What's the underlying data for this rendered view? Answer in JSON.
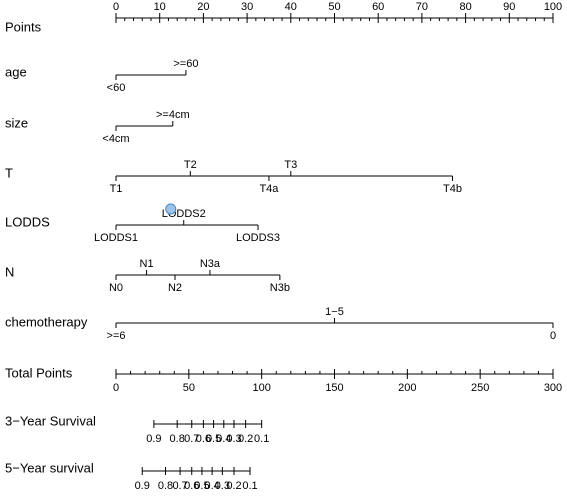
{
  "chart_data": {
    "type": "nomogram",
    "marked_point": {
      "row": "LODDS",
      "category": "LODDS2"
    },
    "rows": [
      {
        "key": "points",
        "label": "Points",
        "kind": "scale",
        "range": [
          0,
          100
        ],
        "major_ticks": [
          0,
          10,
          20,
          30,
          40,
          50,
          60,
          70,
          80,
          90,
          100
        ],
        "minor_step": 2,
        "labels_above": true
      },
      {
        "key": "age",
        "label": "age",
        "kind": "categorical",
        "categories": [
          {
            "label": "<60",
            "points": 0,
            "side": "below"
          },
          {
            "label": ">=60",
            "points": 16,
            "side": "above"
          }
        ]
      },
      {
        "key": "size",
        "label": "size",
        "kind": "categorical",
        "categories": [
          {
            "label": "<4cm",
            "points": 0,
            "side": "below"
          },
          {
            "label": ">=4cm",
            "points": 13,
            "side": "above"
          }
        ]
      },
      {
        "key": "t",
        "label": "T",
        "kind": "categorical",
        "categories": [
          {
            "label": "T1",
            "points": 0,
            "side": "below"
          },
          {
            "label": "T2",
            "points": 17,
            "side": "above"
          },
          {
            "label": "T4a",
            "points": 35,
            "side": "below"
          },
          {
            "label": "T3",
            "points": 40,
            "side": "above"
          },
          {
            "label": "T4b",
            "points": 77,
            "side": "below"
          }
        ]
      },
      {
        "key": "lodds",
        "label": "LODDS",
        "kind": "categorical",
        "categories": [
          {
            "label": "LODDS1",
            "points": 0,
            "side": "below"
          },
          {
            "label": "LODDS2",
            "points": 15.5,
            "side": "above"
          },
          {
            "label": "LODDS3",
            "points": 32.5,
            "side": "below"
          }
        ]
      },
      {
        "key": "n",
        "label": "N",
        "kind": "categorical",
        "categories": [
          {
            "label": "N0",
            "points": 0,
            "side": "below"
          },
          {
            "label": "N1",
            "points": 7,
            "side": "above"
          },
          {
            "label": "N2",
            "points": 13.5,
            "side": "below"
          },
          {
            "label": "N3a",
            "points": 21.5,
            "side": "above"
          },
          {
            "label": "N3b",
            "points": 37.5,
            "side": "below"
          }
        ]
      },
      {
        "key": "chemotherapy",
        "label": "chemotherapy",
        "kind": "categorical",
        "categories": [
          {
            "label": ">=6",
            "points": 0,
            "side": "below"
          },
          {
            "label": "1−5",
            "points": 50,
            "side": "above"
          },
          {
            "label": "0",
            "points": 100,
            "side": "below"
          }
        ]
      },
      {
        "key": "total_points",
        "label": "Total Points",
        "kind": "scale",
        "range": [
          0,
          300
        ],
        "major_ticks": [
          0,
          50,
          100,
          150,
          200,
          250,
          300
        ],
        "minor_step": 10,
        "labels_above": false
      },
      {
        "key": "surv3",
        "label": "3−Year Survival",
        "kind": "survival",
        "ticks": [
          {
            "label": "0.9",
            "total_points": 26
          },
          {
            "label": "0.8",
            "total_points": 42
          },
          {
            "label": "0.7",
            "total_points": 52
          },
          {
            "label": "0.6",
            "total_points": 60
          },
          {
            "label": "0.5",
            "total_points": 67
          },
          {
            "label": "0.4",
            "total_points": 74
          },
          {
            "label": "0.3",
            "total_points": 81
          },
          {
            "label": "0.2",
            "total_points": 89
          },
          {
            "label": "0.1",
            "total_points": 100
          }
        ]
      },
      {
        "key": "surv5",
        "label": "5−Year survival",
        "kind": "survival",
        "ticks": [
          {
            "label": "0.9",
            "total_points": 18
          },
          {
            "label": "0.8",
            "total_points": 34
          },
          {
            "label": "0.7",
            "total_points": 44
          },
          {
            "label": "0.6",
            "total_points": 52
          },
          {
            "label": "0.5",
            "total_points": 59
          },
          {
            "label": "0.4",
            "total_points": 66
          },
          {
            "label": "0.3",
            "total_points": 73
          },
          {
            "label": "0.2",
            "total_points": 81
          },
          {
            "label": "0.1",
            "total_points": 92
          }
        ]
      }
    ]
  }
}
